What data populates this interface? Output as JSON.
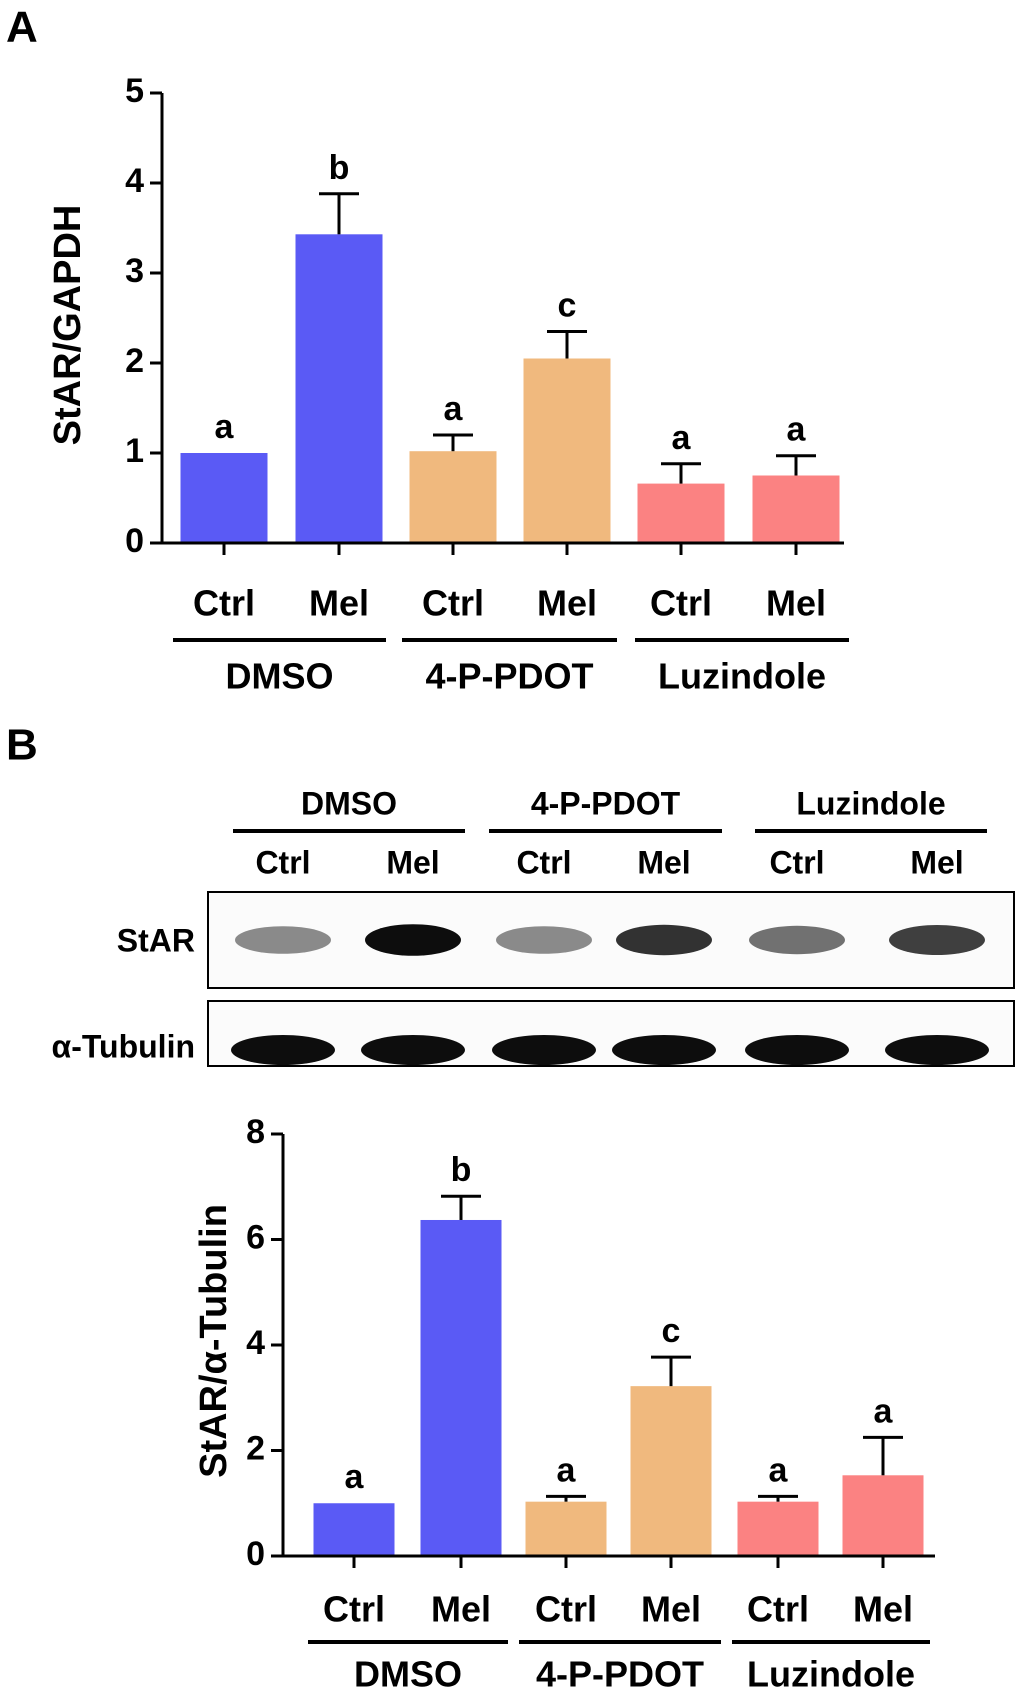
{
  "panels": [
    "A",
    "B"
  ],
  "chart_data": [
    {
      "type": "bar",
      "ylabel": "StAR/GAPDH",
      "categories": [
        "Ctrl",
        "Mel",
        "Ctrl",
        "Mel",
        "Ctrl",
        "Mel"
      ],
      "groups": [
        "DMSO",
        "4-P-PDOT",
        "Luzindole"
      ],
      "values": [
        1.0,
        3.43,
        1.02,
        2.05,
        0.66,
        0.75
      ],
      "errors": [
        0,
        0.45,
        0.18,
        0.3,
        0.22,
        0.22
      ],
      "annotations": [
        "a",
        "b",
        "a",
        "c",
        "a",
        "a"
      ],
      "colors": [
        "#5a5af5",
        "#5a5af5",
        "#f0b97e",
        "#f0b97e",
        "#fb8282",
        "#fb8282"
      ],
      "ylim": [
        0,
        5
      ],
      "yticks": [
        0,
        1,
        2,
        3,
        4,
        5
      ]
    },
    {
      "type": "bar",
      "ylabel": "StAR/α-Tubulin",
      "categories": [
        "Ctrl",
        "Mel",
        "Ctrl",
        "Mel",
        "Ctrl",
        "Mel"
      ],
      "groups": [
        "DMSO",
        "4-P-PDOT",
        "Luzindole"
      ],
      "values": [
        1.0,
        6.37,
        1.03,
        3.22,
        1.03,
        1.53
      ],
      "errors": [
        0,
        0.45,
        0.1,
        0.55,
        0.1,
        0.72
      ],
      "annotations": [
        "a",
        "b",
        "a",
        "c",
        "a",
        "a"
      ],
      "colors": [
        "#5a5af5",
        "#5a5af5",
        "#f0b97e",
        "#f0b97e",
        "#fb8282",
        "#fb8282"
      ],
      "ylim": [
        0,
        8
      ],
      "yticks": [
        0,
        2,
        4,
        6,
        8
      ]
    }
  ],
  "blot": {
    "groups": [
      "DMSO",
      "4-P-PDOT",
      "Luzindole"
    ],
    "lanes": [
      "Ctrl",
      "Mel",
      "Ctrl",
      "Mel",
      "Ctrl",
      "Mel"
    ],
    "rows": [
      "StAR",
      "α-Tubulin"
    ]
  }
}
